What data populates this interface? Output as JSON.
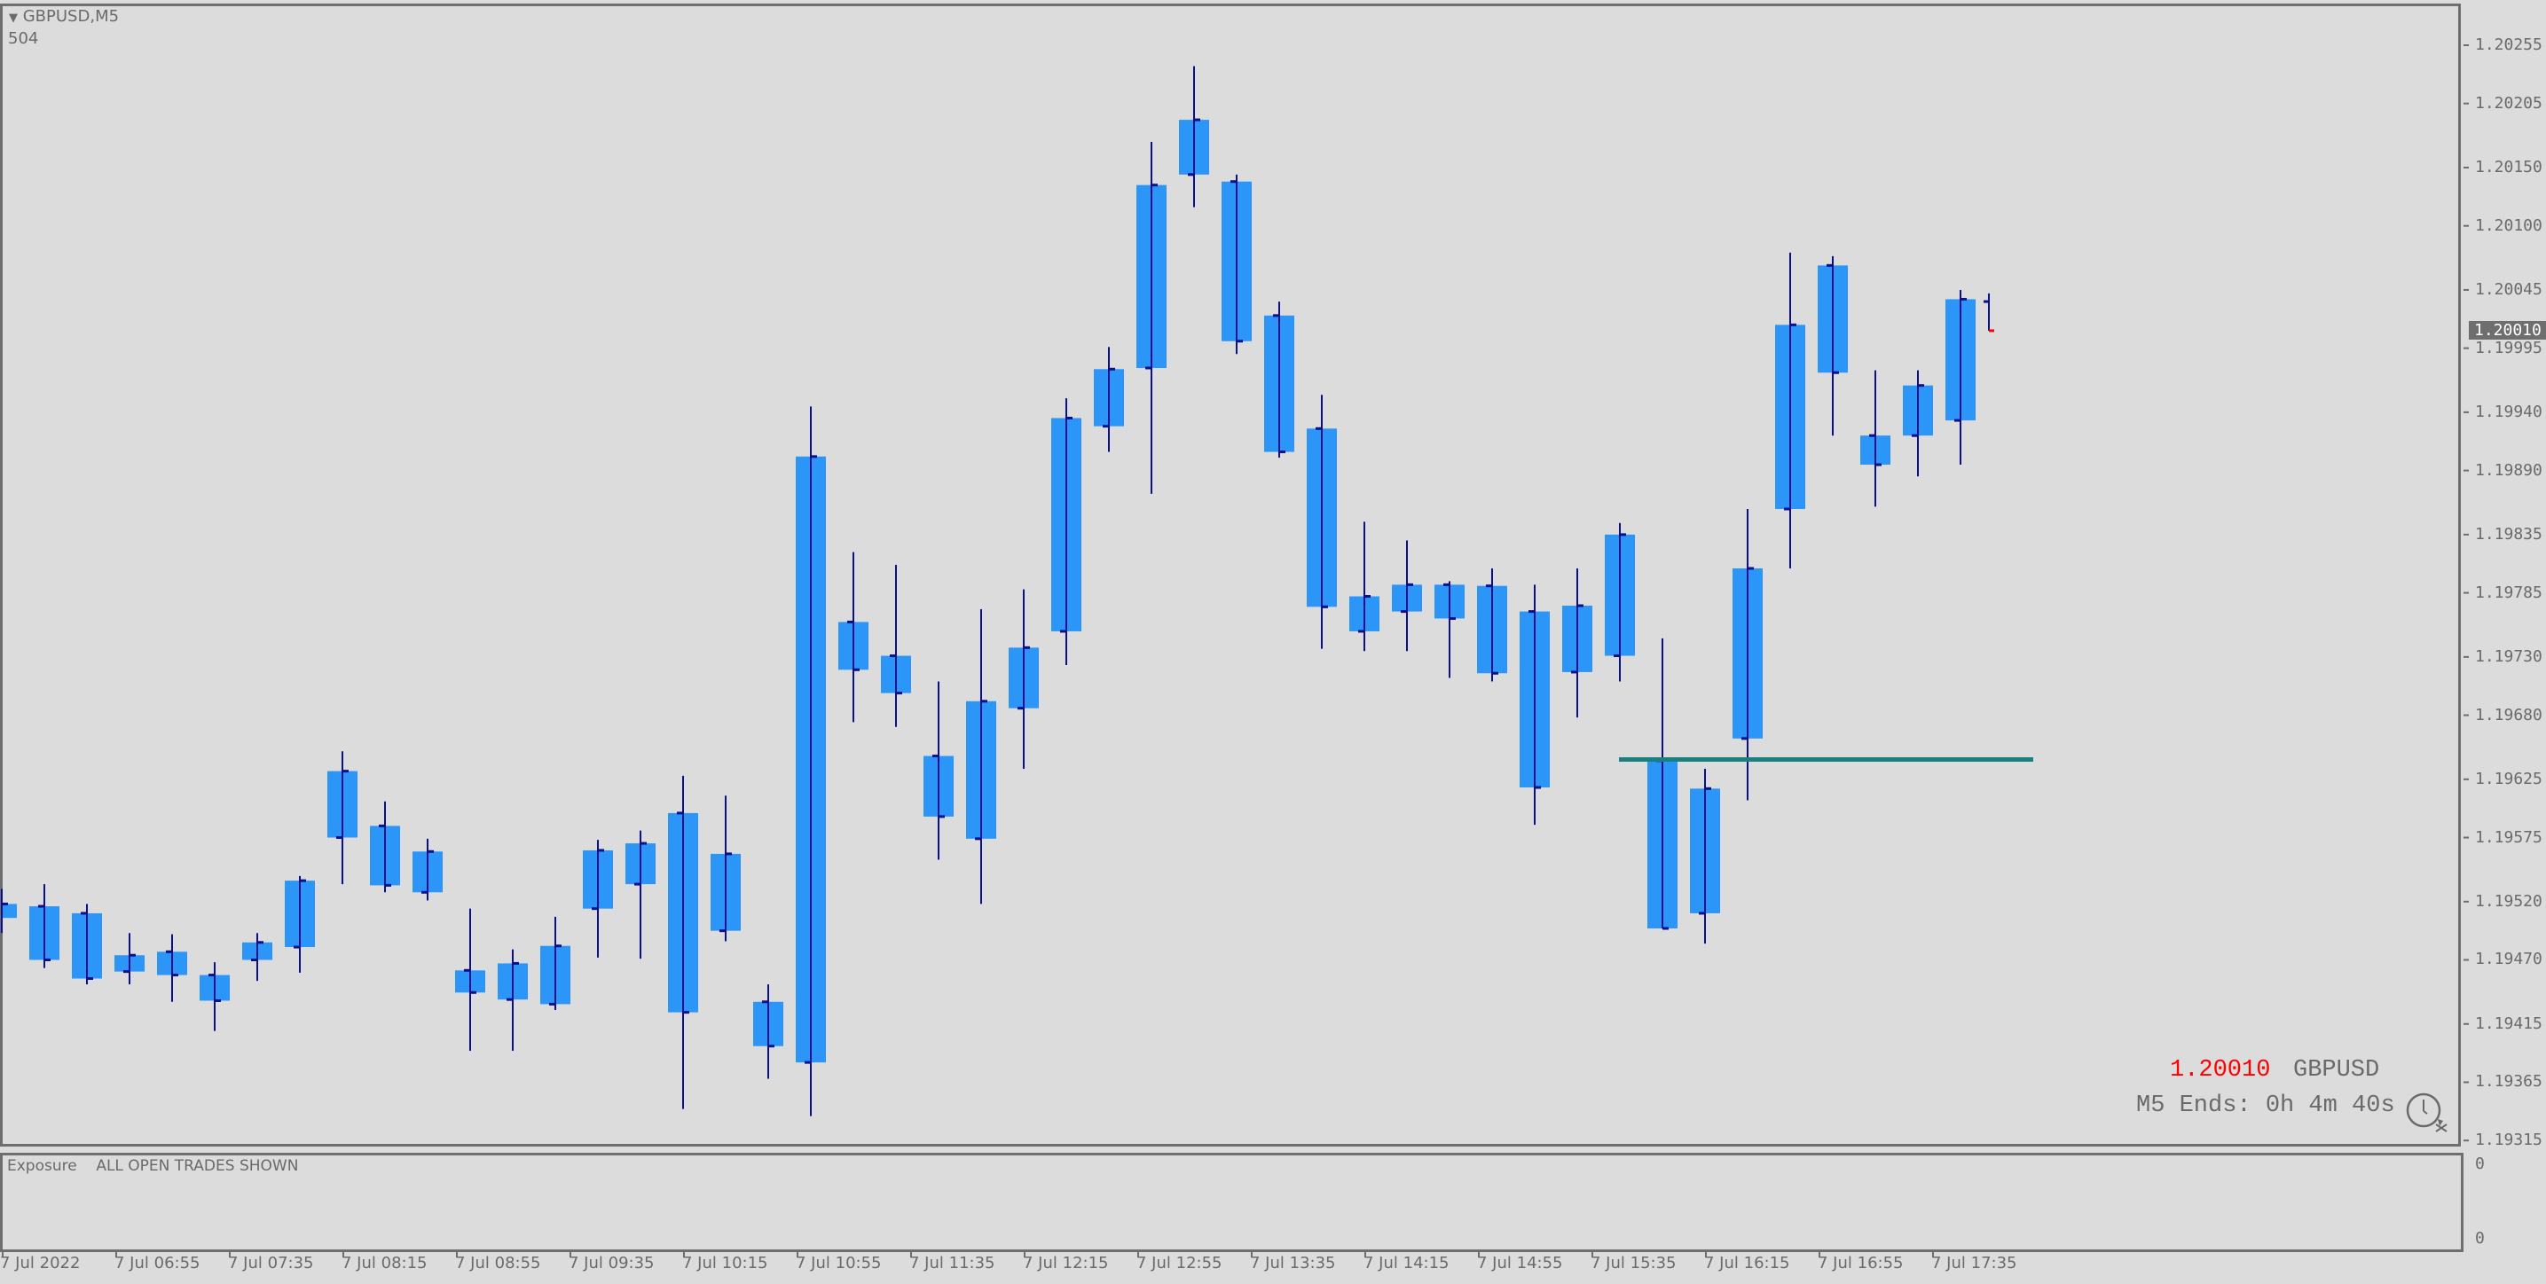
{
  "header": {
    "symbol_timeframe": "GBPUSD,M5",
    "sub_value": "504",
    "menu_icon": "triangle-down-icon"
  },
  "indicator": {
    "name": "Exposure",
    "status": "ALL OPEN TRADES SHOWN",
    "axis_top": "0",
    "axis_bottom": "0"
  },
  "overlay": {
    "price": "1.20010",
    "symbol": "GBPUSD",
    "countdown": "M5 Ends: 0h 4m 40s",
    "icon": "clock-icon",
    "price_color": "#ff0000"
  },
  "colors": {
    "background": "#dcdcdc",
    "box": "#2b95f8",
    "bar": "#0a0f8f",
    "level_line": "#1a7f7f",
    "current_price_bg": "#6e6e6e"
  },
  "chart_data": {
    "type": "candlestick",
    "symbol": "GBPUSD",
    "timeframe": "M5",
    "ylim": [
      1.19315,
      1.20255
    ],
    "price_ticks": [
      "1.20255",
      "1.20205",
      "1.20150",
      "1.20100",
      "1.20045",
      "1.19995",
      "1.19940",
      "1.19890",
      "1.19835",
      "1.19785",
      "1.19730",
      "1.19680",
      "1.19625",
      "1.19575",
      "1.19520",
      "1.19470",
      "1.19415",
      "1.19365",
      "1.19315"
    ],
    "current_price": "1.20010",
    "time_ticks": [
      "7 Jul 2022",
      "7 Jul 06:55",
      "7 Jul 07:35",
      "7 Jul 08:15",
      "7 Jul 08:55",
      "7 Jul 09:35",
      "7 Jul 10:15",
      "7 Jul 10:55",
      "7 Jul 11:35",
      "7 Jul 12:15",
      "7 Jul 12:55",
      "7 Jul 13:35",
      "7 Jul 14:15",
      "7 Jul 14:55",
      "7 Jul 15:35",
      "7 Jul 16:15",
      "7 Jul 16:55",
      "7 Jul 17:35"
    ],
    "candles_ohlc": [
      [
        1.19506,
        1.19531,
        1.19493,
        1.19518
      ],
      [
        1.19516,
        1.19535,
        1.19463,
        1.1947
      ],
      [
        1.1951,
        1.19518,
        1.19449,
        1.19454
      ],
      [
        1.1946,
        1.19493,
        1.19449,
        1.19474
      ],
      [
        1.19477,
        1.19492,
        1.19434,
        1.19457
      ],
      [
        1.19457,
        1.19468,
        1.19409,
        1.19435
      ],
      [
        1.1947,
        1.19493,
        1.19452,
        1.19485
      ],
      [
        1.19481,
        1.19542,
        1.19459,
        1.19538
      ],
      [
        1.19575,
        1.19649,
        1.19535,
        1.19632
      ],
      [
        1.19585,
        1.19606,
        1.19528,
        1.19534
      ],
      [
        1.19528,
        1.19574,
        1.19521,
        1.19563
      ],
      [
        1.19461,
        1.19514,
        1.19392,
        1.19442
      ],
      [
        1.19436,
        1.19479,
        1.19392,
        1.19467
      ],
      [
        1.19432,
        1.19507,
        1.19427,
        1.19482
      ],
      [
        1.19514,
        1.19573,
        1.19472,
        1.19564
      ],
      [
        1.19535,
        1.19581,
        1.19471,
        1.1957
      ],
      [
        1.19596,
        1.19628,
        1.19342,
        1.19425
      ],
      [
        1.19495,
        1.19611,
        1.19486,
        1.19561
      ],
      [
        1.19434,
        1.19449,
        1.19368,
        1.19396
      ],
      [
        1.19382,
        1.19945,
        1.19336,
        1.19902
      ],
      [
        1.1976,
        1.1982,
        1.19674,
        1.19719
      ],
      [
        1.19731,
        1.19809,
        1.1967,
        1.19699
      ],
      [
        1.19645,
        1.19709,
        1.19556,
        1.19593
      ],
      [
        1.19574,
        1.19771,
        1.19518,
        1.19692
      ],
      [
        1.19686,
        1.19788,
        1.19634,
        1.19738
      ],
      [
        1.19752,
        1.19952,
        1.19723,
        1.19935
      ],
      [
        1.19928,
        1.19996,
        1.19906,
        1.19977
      ],
      [
        1.19978,
        1.20172,
        1.1987,
        1.20135
      ],
      [
        1.20144,
        1.20237,
        1.20116,
        1.20191
      ],
      [
        1.20138,
        1.20144,
        1.1999,
        1.20001
      ],
      [
        1.20023,
        1.20035,
        1.19901,
        1.19906
      ],
      [
        1.19926,
        1.19955,
        1.19737,
        1.19773
      ],
      [
        1.19752,
        1.19846,
        1.19735,
        1.19782
      ],
      [
        1.19769,
        1.1983,
        1.19735,
        1.19792
      ],
      [
        1.19792,
        1.19795,
        1.19712,
        1.19763
      ],
      [
        1.19791,
        1.19806,
        1.19709,
        1.19716
      ],
      [
        1.19769,
        1.19792,
        1.19586,
        1.19618
      ],
      [
        1.19717,
        1.19806,
        1.19678,
        1.19774
      ],
      [
        1.19731,
        1.19845,
        1.19709,
        1.19835
      ],
      [
        1.19641,
        1.19746,
        1.19497,
        1.19497
      ],
      [
        1.1951,
        1.19634,
        1.19484,
        1.19617
      ],
      [
        1.1966,
        1.19857,
        1.19607,
        1.19806
      ],
      [
        1.19857,
        1.20077,
        1.19806,
        1.20015
      ],
      [
        1.20066,
        1.20074,
        1.1992,
        1.19974
      ],
      [
        1.1992,
        1.19976,
        1.19859,
        1.19895
      ],
      [
        1.1992,
        1.19976,
        1.19885,
        1.19963
      ],
      [
        1.19933,
        1.20045,
        1.19895,
        1.20037
      ]
    ],
    "current_bar_ohlc": [
      1.20035,
      1.20042,
      1.2001,
      1.2001
    ],
    "horizontal_level": 1.19642
  }
}
